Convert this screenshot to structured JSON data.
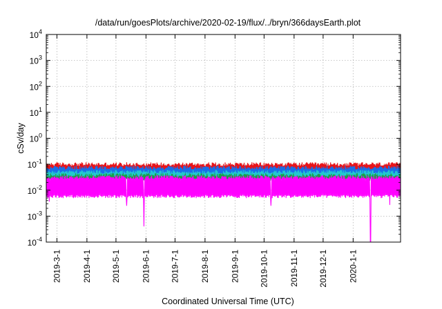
{
  "chart_data": {
    "type": "line",
    "title": "/data/run/goesPlots/archive/2020-02-19/flux/../bryn/366daysEarth.plot",
    "xlabel": "Coordinated Universal Time (UTC)",
    "ylabel": "cSv/day",
    "yscale": "log",
    "ylim": [
      0.0001,
      10000
    ],
    "xlim": [
      "2019-02-18",
      "2020-02-19"
    ],
    "grid": true,
    "legend": "none",
    "y_ticks": [
      {
        "base": "10",
        "exp": "-4"
      },
      {
        "base": "10",
        "exp": "-3"
      },
      {
        "base": "10",
        "exp": "-2"
      },
      {
        "base": "10",
        "exp": "-1"
      },
      {
        "base": "10",
        "exp": "0"
      },
      {
        "base": "10",
        "exp": "1"
      },
      {
        "base": "10",
        "exp": "2"
      },
      {
        "base": "10",
        "exp": "3"
      },
      {
        "base": "10",
        "exp": "4"
      }
    ],
    "x_ticks": [
      "2019-3-1",
      "2019-4-1",
      "2019-5-1",
      "2019-6-1",
      "2019-7-1",
      "2019-8-1",
      "2019-9-1",
      "2019-10-1",
      "2019-11-1",
      "2019-12-1",
      "2020-1-1"
    ],
    "x_tick_days": [
      11,
      42,
      72,
      103,
      133,
      164,
      195,
      225,
      256,
      286,
      317
    ],
    "x_span_days": 366,
    "series": [
      {
        "name": "red",
        "color": "#e8141a",
        "typical_high": 0.095,
        "typical_low": 0.06
      },
      {
        "name": "blue",
        "color": "#1a6ee8",
        "typical_high": 0.07,
        "typical_low": 0.042
      },
      {
        "name": "cyan",
        "color": "#22c8d0",
        "typical_high": 0.048,
        "typical_low": 0.032
      },
      {
        "name": "green",
        "color": "#1b9e4a",
        "typical_high": 0.036,
        "typical_low": 0.026
      },
      {
        "name": "magenta",
        "color": "#ff00ff",
        "typical_high": 0.03,
        "typical_low": 0.006
      }
    ],
    "dips": [
      {
        "day": 3,
        "value": 0.0036
      },
      {
        "day": 83,
        "value": 0.0025
      },
      {
        "day": 101,
        "value": 0.0004
      },
      {
        "day": 232,
        "value": 0.0025
      },
      {
        "day": 335,
        "value": 0.0001
      },
      {
        "day": 355,
        "value": 0.0027
      }
    ]
  }
}
